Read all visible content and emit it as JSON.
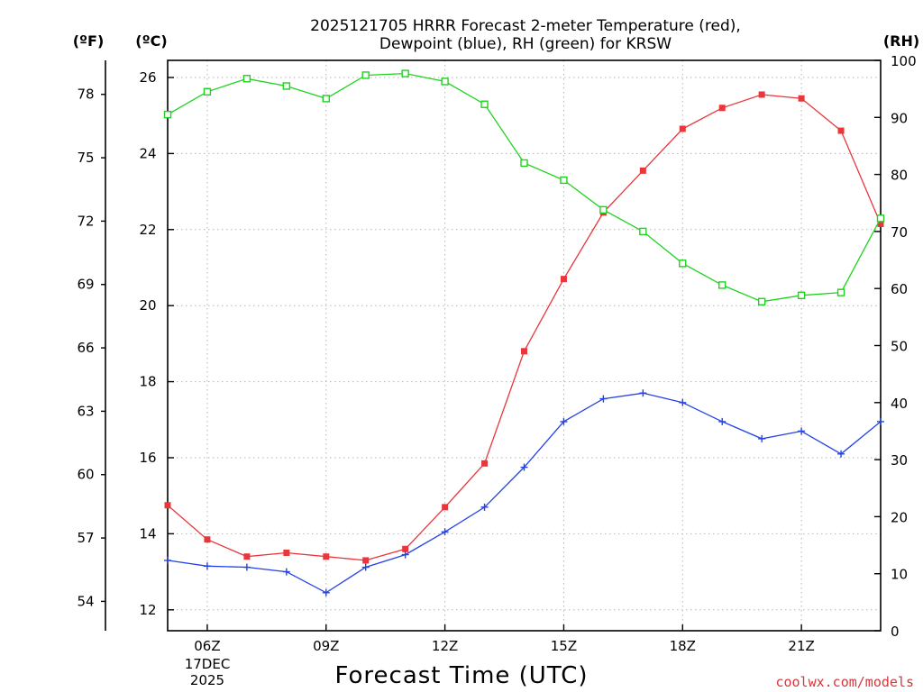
{
  "chart_data": {
    "type": "line",
    "title_line1": "2025121705 HRRR Forecast 2-meter Temperature (red),",
    "title_line2": "Dewpoint (blue), RH (green) for KRSW",
    "xlabel": "Forecast Time (UTC)",
    "credit": "coolwx.com/models",
    "units": {
      "fahrenheit": "(ºF)",
      "celsius": "(ºC)",
      "rh": "(RH)"
    },
    "date_label": {
      "day": "17DEC",
      "year": "2025"
    },
    "x_hours": [
      5,
      6,
      7,
      8,
      9,
      10,
      11,
      12,
      13,
      14,
      15,
      16,
      17,
      18,
      19,
      20,
      21,
      22,
      23
    ],
    "x_range": [
      5,
      23
    ],
    "x_ticks": [
      {
        "hour": 6,
        "label": "06Z"
      },
      {
        "hour": 9,
        "label": "09Z"
      },
      {
        "hour": 12,
        "label": "12Z"
      },
      {
        "hour": 15,
        "label": "15Z"
      },
      {
        "hour": 18,
        "label": "18Z"
      },
      {
        "hour": 21,
        "label": "21Z"
      }
    ],
    "y_celsius_range": [
      11.45,
      26.45
    ],
    "y_celsius_ticks": [
      "12",
      "14",
      "16",
      "18",
      "20",
      "22",
      "24",
      "26"
    ],
    "y_fahrenheit_ticks": [
      "54",
      "57",
      "60",
      "63",
      "66",
      "69",
      "72",
      "75",
      "78"
    ],
    "y_rh_range": [
      0,
      100
    ],
    "y_rh_ticks": [
      "0",
      "10",
      "20",
      "30",
      "40",
      "50",
      "60",
      "70",
      "80",
      "90",
      "100"
    ],
    "grid": true,
    "series": [
      {
        "name": "Temperature",
        "unit": "C",
        "color": "#e8363b",
        "marker": "filled-square",
        "values": [
          14.75,
          13.85,
          13.4,
          13.5,
          13.4,
          13.3,
          13.6,
          14.7,
          15.85,
          18.8,
          20.7,
          22.45,
          23.55,
          24.65,
          25.2,
          25.55,
          25.45,
          24.6,
          22.15
        ]
      },
      {
        "name": "Dewpoint",
        "unit": "C",
        "color": "#2342e8",
        "marker": "plus",
        "values": [
          13.3,
          13.15,
          13.12,
          13.0,
          12.45,
          13.12,
          13.45,
          14.05,
          14.7,
          15.75,
          16.95,
          17.55,
          17.7,
          17.45,
          16.95,
          16.5,
          16.7,
          16.1,
          16.95
        ]
      },
      {
        "name": "RH",
        "unit": "%",
        "color": "#1fd31f",
        "marker": "open-square",
        "values": [
          90.5,
          94.5,
          96.8,
          95.5,
          93.3,
          97.4,
          97.7,
          96.3,
          92.3,
          82.0,
          79.0,
          73.8,
          70.0,
          64.4,
          60.6,
          57.7,
          58.8,
          59.3,
          72.3
        ]
      }
    ]
  }
}
